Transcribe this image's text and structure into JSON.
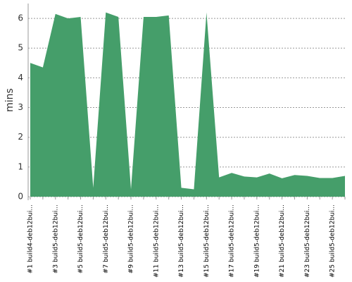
{
  "chart_data": {
    "type": "area",
    "y_label": "mins",
    "categories": [
      "#1 build4-deb12bui...",
      null,
      "#3 build5-deb12bui...",
      null,
      "#5 build5-deb12bui...",
      null,
      "#7 build5-deb12bui...",
      null,
      "#9 build5-deb12bui...",
      null,
      "#11 build5-deb12bui...",
      null,
      "#13 build5-deb12bui...",
      null,
      "#15 build5-deb12bui...",
      null,
      "#17 build5-deb12bui...",
      null,
      "#19 build5-deb12bui...",
      null,
      "#21 build5-deb12bui...",
      null,
      "#23 build5-deb12bui...",
      null,
      "#25 build5-deb12bui...",
      null
    ],
    "values": [
      4.5,
      4.35,
      6.15,
      6.0,
      6.05,
      0.3,
      6.2,
      6.05,
      0.25,
      6.05,
      6.05,
      6.1,
      0.3,
      0.25,
      6.2,
      0.65,
      0.8,
      0.68,
      0.65,
      0.78,
      0.62,
      0.73,
      0.7,
      0.63,
      0.63,
      0.7
    ],
    "color": "#459e6a",
    "ylim": [
      0,
      6.5
    ],
    "yticks": [
      0,
      1,
      2,
      3,
      4,
      5,
      6
    ],
    "grid": true
  }
}
